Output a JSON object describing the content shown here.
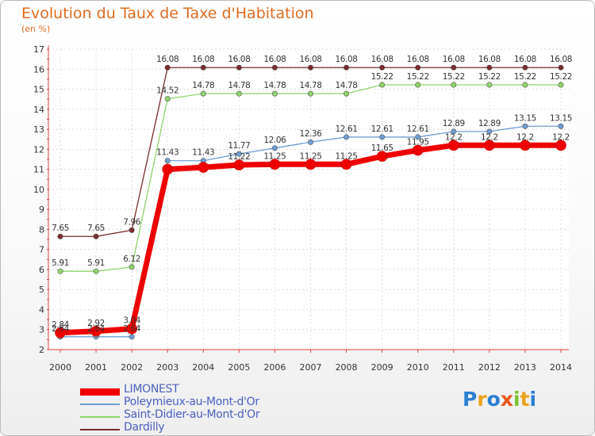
{
  "title": "Evolution du Taux de Taxe d'Habitation",
  "subtitle": "(en %)",
  "logo": {
    "letters": [
      "P",
      "r",
      "o",
      "x",
      "i",
      "t",
      "i"
    ],
    "colors": [
      "#2a7fd1",
      "#e8a21a",
      "#2a7fd1",
      "#e8561a",
      "#7cc12f",
      "#e8a21a",
      "#2a7fd1"
    ]
  },
  "chart_data": {
    "type": "line",
    "title": "Evolution du Taux de Taxe d'Habitation",
    "ylabel": "(en %)",
    "xlabel": "",
    "x": [
      2000,
      2001,
      2002,
      2003,
      2004,
      2005,
      2006,
      2007,
      2008,
      2009,
      2010,
      2011,
      2012,
      2013,
      2014
    ],
    "x_labels": [
      "2000",
      "2001",
      "2002",
      "2003",
      "2004",
      "2005",
      "2006",
      "2007",
      "2008",
      "2009",
      "2010",
      "2011",
      "2012",
      "2013",
      "2014"
    ],
    "y_ticks": [
      "2",
      "3",
      "4",
      "5",
      "6",
      "7",
      "8",
      "9",
      "10",
      "11",
      "12",
      "13",
      "14",
      "15",
      "16",
      "17"
    ],
    "ylim": [
      2,
      17
    ],
    "grid": true,
    "legend": "bottom-left",
    "series": [
      {
        "name": "LIMONEST",
        "color": "#ee0000",
        "width": 7,
        "values": [
          2.84,
          2.92,
          3.04,
          11.0,
          11.1,
          11.22,
          11.25,
          11.25,
          11.25,
          11.65,
          11.95,
          12.2,
          12.2,
          12.2,
          12.2
        ],
        "labels": [
          "2.84",
          "2.92",
          "3.04",
          "",
          "",
          "11.22",
          "11.25",
          "11.25",
          "11.25",
          "11.65",
          "11.95",
          "12.2",
          "12.2",
          "12.2",
          "12.2"
        ]
      },
      {
        "name": "Poleymieux-au-Mont-d'Or",
        "color": "#6d9dd1",
        "width": 1.3,
        "values": [
          2.64,
          2.64,
          2.64,
          11.43,
          11.43,
          11.77,
          12.06,
          12.36,
          12.61,
          12.61,
          12.61,
          12.89,
          12.89,
          13.15,
          13.15
        ],
        "labels": [
          "2.64",
          "2.64",
          "2.64",
          "11.43",
          "11.43",
          "11.77",
          "12.06",
          "12.36",
          "12.61",
          "12.61",
          "12.61",
          "12.89",
          "12.89",
          "13.15",
          "13.15"
        ]
      },
      {
        "name": "Saint-Didier-au-Mont-d'Or",
        "color": "#8fd46a",
        "width": 1.3,
        "values": [
          5.91,
          5.91,
          6.12,
          14.52,
          14.78,
          14.78,
          14.78,
          14.78,
          14.78,
          15.22,
          15.22,
          15.22,
          15.22,
          15.22,
          15.22
        ],
        "labels": [
          "5.91",
          "5.91",
          "6.12",
          "14.52",
          "14.78",
          "14.78",
          "14.78",
          "14.78",
          "14.78",
          "15.22",
          "15.22",
          "15.22",
          "15.22",
          "15.22",
          "15.22"
        ]
      },
      {
        "name": "Dardilly",
        "color": "#7a2a2a",
        "width": 1.3,
        "values": [
          7.65,
          7.65,
          7.96,
          16.08,
          16.08,
          16.08,
          16.08,
          16.08,
          16.08,
          16.08,
          16.08,
          16.08,
          16.08,
          16.08,
          16.08
        ],
        "labels": [
          "7.65",
          "7.65",
          "7.96",
          "16.08",
          "16.08",
          "16.08",
          "16.08",
          "16.08",
          "16.08",
          "16.08",
          "16.08",
          "16.08",
          "16.08",
          "16.08",
          "16.08"
        ]
      }
    ]
  }
}
